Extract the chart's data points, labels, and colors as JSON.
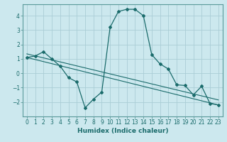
{
  "xlabel": "Humidex (Indice chaleur)",
  "ylabel": "",
  "background_color": "#cce8ee",
  "grid_color": "#aacdd6",
  "line_color": "#1a6b6b",
  "spine_color": "#5a9a9a",
  "xlim": [
    -0.5,
    23.5
  ],
  "ylim": [
    -3,
    4.8
  ],
  "yticks": [
    -2,
    -1,
    0,
    1,
    2,
    3,
    4
  ],
  "xticks": [
    0,
    1,
    2,
    3,
    4,
    5,
    6,
    7,
    8,
    9,
    10,
    11,
    12,
    13,
    14,
    15,
    16,
    17,
    18,
    19,
    20,
    21,
    22,
    23
  ],
  "curve1_x": [
    0,
    1,
    2,
    3,
    4,
    5,
    6,
    7,
    8,
    9,
    10,
    11,
    12,
    13,
    14,
    15,
    16,
    17,
    18,
    19,
    20,
    21,
    22,
    23
  ],
  "curve1_y": [
    1.1,
    1.2,
    1.5,
    1.0,
    0.5,
    -0.3,
    -0.6,
    -2.4,
    -1.8,
    -1.3,
    3.2,
    4.3,
    4.45,
    4.45,
    4.0,
    1.3,
    0.65,
    0.3,
    -0.8,
    -0.85,
    -1.5,
    -0.9,
    -2.1,
    -2.2
  ],
  "curve2_x": [
    0,
    23
  ],
  "curve2_y": [
    1.1,
    -2.2
  ],
  "curve3_x": [
    0,
    23
  ],
  "curve3_y": [
    1.35,
    -1.85
  ],
  "fontsize_label": 6,
  "fontsize_tick": 5.5,
  "fontsize_xlabel": 6.5
}
